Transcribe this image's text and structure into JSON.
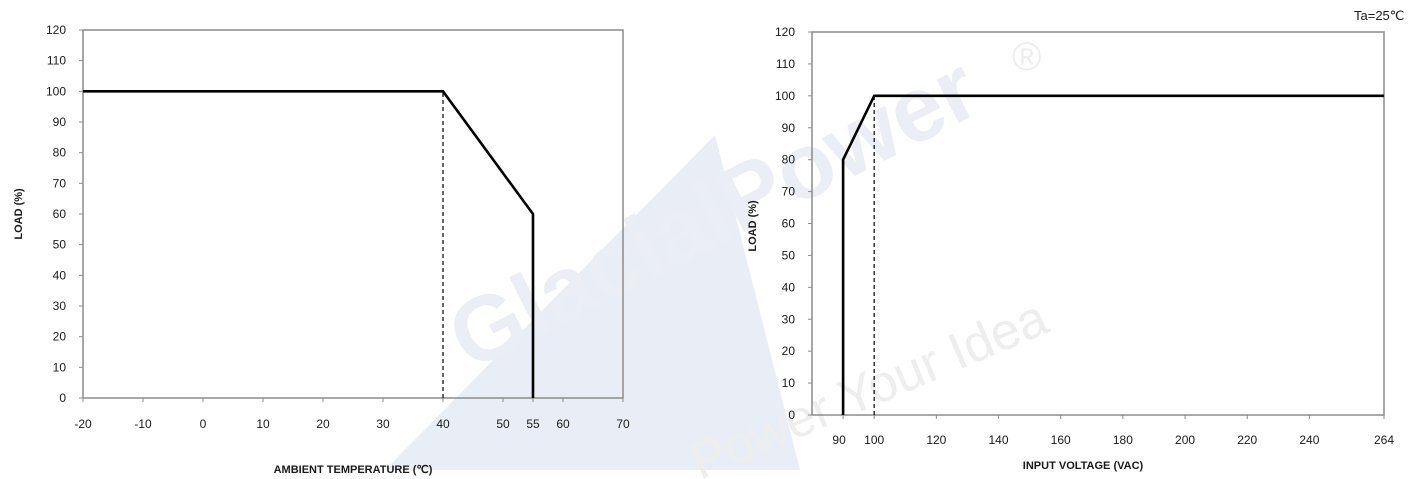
{
  "watermark": {
    "brand": "GlacialPower",
    "registered": "®",
    "slogan": "Power Your Idea"
  },
  "chart_data": [
    {
      "type": "line",
      "title": "",
      "xlabel": "AMBIENT TEMPERATURE (℃)",
      "ylabel": "LOAD (%)",
      "xlim": [
        -20,
        70
      ],
      "ylim": [
        0,
        120
      ],
      "xticks": [
        -20,
        -10,
        0,
        10,
        20,
        30,
        40,
        50,
        55,
        60,
        70
      ],
      "yticks": [
        0,
        10,
        20,
        30,
        40,
        50,
        60,
        70,
        80,
        90,
        100,
        110,
        120
      ],
      "grid": false,
      "series": [
        {
          "x": [
            -20,
            40,
            55,
            55
          ],
          "y": [
            100,
            100,
            60,
            0
          ]
        }
      ],
      "reference_lines": [
        {
          "x": [
            40,
            40
          ],
          "y": [
            0,
            100
          ],
          "style": "dashed"
        }
      ]
    },
    {
      "type": "line",
      "title": "",
      "annotation": "Ta=25℃",
      "xlabel": "INPUT VOLTAGE (VAC)",
      "ylabel": "LOAD (%)",
      "xlim": [
        80,
        264
      ],
      "ylim": [
        0,
        120
      ],
      "xticks": [
        90,
        100,
        120,
        140,
        160,
        180,
        200,
        220,
        240,
        264
      ],
      "yticks": [
        0,
        10,
        20,
        30,
        40,
        50,
        60,
        70,
        80,
        90,
        100,
        110,
        120
      ],
      "grid": false,
      "series": [
        {
          "x": [
            90,
            90,
            100,
            264
          ],
          "y": [
            0,
            80,
            100,
            100
          ]
        }
      ],
      "reference_lines": [
        {
          "x": [
            100,
            100
          ],
          "y": [
            0,
            100
          ],
          "style": "dashed"
        }
      ]
    }
  ]
}
